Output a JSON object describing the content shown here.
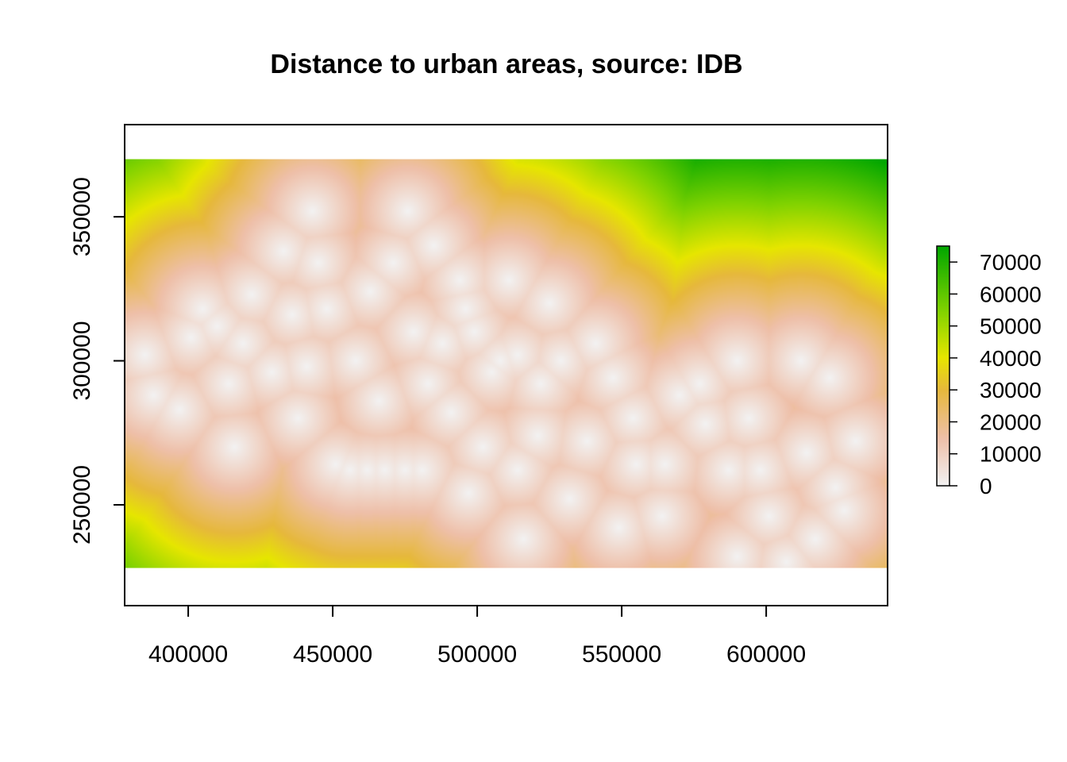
{
  "chart_data": {
    "type": "heatmap",
    "title": "Distance to urban areas, source: IDB",
    "xlabel": "",
    "ylabel": "",
    "xlim": [
      378000,
      642000
    ],
    "ylim": [
      215000,
      382000
    ],
    "raster_extent": {
      "x": [
        378000,
        642000
      ],
      "y": [
        228000,
        370000
      ]
    },
    "x_ticks": [
      {
        "value": 400000,
        "label": "400000"
      },
      {
        "value": 450000,
        "label": "450000"
      },
      {
        "value": 500000,
        "label": "500000"
      },
      {
        "value": 550000,
        "label": "550000"
      },
      {
        "value": 600000,
        "label": "600000"
      }
    ],
    "y_ticks": [
      {
        "value": 250000,
        "label": "250000"
      },
      {
        "value": 300000,
        "label": "300000"
      },
      {
        "value": 350000,
        "label": "350000"
      }
    ],
    "legend": {
      "placement": "right",
      "min": 0,
      "max": 75000,
      "ticks": [
        {
          "value": 0,
          "label": "0"
        },
        {
          "value": 10000,
          "label": "10000"
        },
        {
          "value": 20000,
          "label": "20000"
        },
        {
          "value": 30000,
          "label": "30000"
        },
        {
          "value": 40000,
          "label": "40000"
        },
        {
          "value": 50000,
          "label": "50000"
        },
        {
          "value": 60000,
          "label": "60000"
        },
        {
          "value": 70000,
          "label": "70000"
        }
      ]
    },
    "color_ramp": [
      {
        "value": 0,
        "color": "#f2f2f2"
      },
      {
        "value": 15000,
        "color": "#eebfa8"
      },
      {
        "value": 30000,
        "color": "#e6b83c"
      },
      {
        "value": 40000,
        "color": "#e6e600"
      },
      {
        "value": 55000,
        "color": "#7fd200"
      },
      {
        "value": 75000,
        "color": "#00a600"
      }
    ],
    "urban_points": [
      [
        385000,
        302000
      ],
      [
        388000,
        288000
      ],
      [
        397000,
        283000
      ],
      [
        401000,
        308000
      ],
      [
        405000,
        318000
      ],
      [
        410000,
        312000
      ],
      [
        414000,
        292000
      ],
      [
        416000,
        270000
      ],
      [
        419000,
        306000
      ],
      [
        422000,
        323000
      ],
      [
        429000,
        296000
      ],
      [
        433000,
        338000
      ],
      [
        436000,
        316000
      ],
      [
        438000,
        280000
      ],
      [
        441000,
        298000
      ],
      [
        443000,
        352000
      ],
      [
        445000,
        334000
      ],
      [
        448000,
        318000
      ],
      [
        451000,
        264000
      ],
      [
        456000,
        262000
      ],
      [
        458000,
        300000
      ],
      [
        462000,
        262000
      ],
      [
        463000,
        324000
      ],
      [
        466000,
        286000
      ],
      [
        468000,
        262000
      ],
      [
        471000,
        334000
      ],
      [
        475000,
        262000
      ],
      [
        476000,
        352000
      ],
      [
        478000,
        310000
      ],
      [
        481000,
        262000
      ],
      [
        483000,
        292000
      ],
      [
        485000,
        340000
      ],
      [
        488000,
        306000
      ],
      [
        491000,
        282000
      ],
      [
        494000,
        328000
      ],
      [
        496000,
        318000
      ],
      [
        497000,
        254000
      ],
      [
        499000,
        310000
      ],
      [
        502000,
        270000
      ],
      [
        505000,
        296000
      ],
      [
        508000,
        300000
      ],
      [
        511000,
        328000
      ],
      [
        514000,
        262000
      ],
      [
        514000,
        302000
      ],
      [
        516000,
        238000
      ],
      [
        521000,
        274000
      ],
      [
        522000,
        292000
      ],
      [
        525000,
        320000
      ],
      [
        529000,
        300000
      ],
      [
        532000,
        252000
      ],
      [
        538000,
        272000
      ],
      [
        541000,
        306000
      ],
      [
        547000,
        294000
      ],
      [
        549000,
        242000
      ],
      [
        554000,
        280000
      ],
      [
        555000,
        264000
      ],
      [
        564000,
        246000
      ],
      [
        565000,
        264000
      ],
      [
        570000,
        288000
      ],
      [
        577000,
        292000
      ],
      [
        579000,
        278000
      ],
      [
        587000,
        262000
      ],
      [
        590000,
        300000
      ],
      [
        594000,
        280000
      ],
      [
        598000,
        262000
      ],
      [
        601000,
        246000
      ],
      [
        607000,
        230000
      ],
      [
        612000,
        300000
      ],
      [
        614000,
        268000
      ],
      [
        617000,
        238000
      ],
      [
        622000,
        294000
      ],
      [
        624000,
        256000
      ],
      [
        627000,
        248000
      ],
      [
        631000,
        272000
      ],
      [
        590000,
        232000
      ]
    ]
  }
}
